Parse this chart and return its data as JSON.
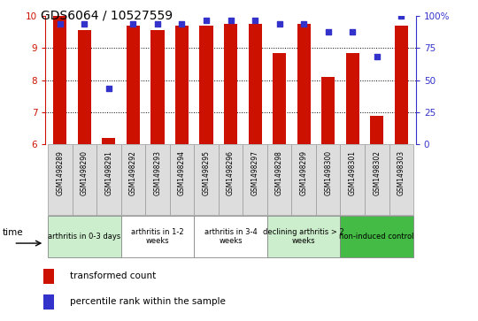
{
  "title": "GDS6064 / 10527559",
  "samples": [
    "GSM1498289",
    "GSM1498290",
    "GSM1498291",
    "GSM1498292",
    "GSM1498293",
    "GSM1498294",
    "GSM1498295",
    "GSM1498296",
    "GSM1498297",
    "GSM1498298",
    "GSM1498299",
    "GSM1498300",
    "GSM1498301",
    "GSM1498302",
    "GSM1498303"
  ],
  "bar_values": [
    10.0,
    9.55,
    6.2,
    9.7,
    9.55,
    9.7,
    9.7,
    9.75,
    9.75,
    8.85,
    9.75,
    8.1,
    8.85,
    6.9,
    9.7
  ],
  "dot_values_pct": [
    93.75,
    93.75,
    43.75,
    93.75,
    93.75,
    93.75,
    96.875,
    96.875,
    96.875,
    93.75,
    93.75,
    87.5,
    87.5,
    68.75,
    100.0
  ],
  "ylim": [
    6,
    10
  ],
  "yticks": [
    6,
    7,
    8,
    9,
    10
  ],
  "y2ticks": [
    0,
    25,
    50,
    75,
    100
  ],
  "bar_color": "#cc1100",
  "dot_color": "#3333cc",
  "groups": [
    {
      "label": "arthritis in 0-3 days",
      "start": 0,
      "end": 3,
      "color": "#cceecc"
    },
    {
      "label": "arthritis in 1-2\nweeks",
      "start": 3,
      "end": 6,
      "color": "#ffffff"
    },
    {
      "label": "arthritis in 3-4\nweeks",
      "start": 6,
      "end": 9,
      "color": "#ffffff"
    },
    {
      "label": "declining arthritis > 2\nweeks",
      "start": 9,
      "end": 12,
      "color": "#cceecc"
    },
    {
      "label": "non-induced control",
      "start": 12,
      "end": 15,
      "color": "#44bb44"
    }
  ],
  "legend_bar_label": "transformed count",
  "legend_dot_label": "percentile rank within the sample",
  "title_fontsize": 10,
  "bar_width": 0.55
}
